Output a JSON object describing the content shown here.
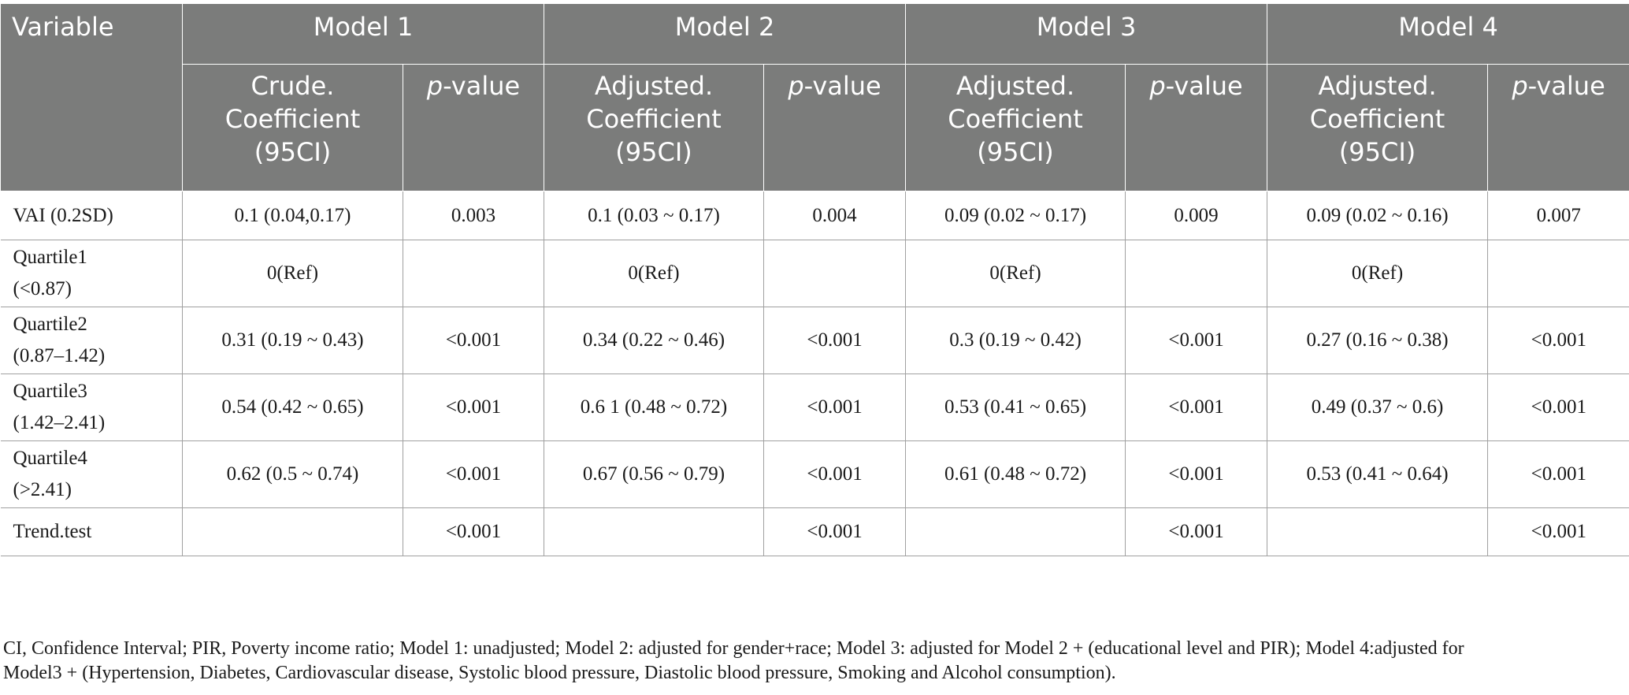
{
  "table": {
    "var_header": "Variable",
    "models": [
      "Model 1",
      "Model 2",
      "Model 3",
      "Model 4"
    ],
    "coef_headers": [
      [
        "Crude.",
        "Coefficient",
        "(95CI)"
      ],
      [
        "Adjusted.",
        "Coefficient",
        "(95CI)"
      ],
      [
        "Adjusted.",
        "Coefficient",
        "(95CI)"
      ],
      [
        "Adjusted.",
        "Coefficient",
        "(95CI)"
      ]
    ],
    "pval_prefix": "p",
    "pval_suffix": "-value",
    "rows": [
      {
        "label": [
          "VAI (0.2SD)"
        ],
        "cells": [
          "0.1 (0.04,0.17)",
          "0.003",
          "0.1 (0.03 ~ 0.17)",
          "0.004",
          "0.09 (0.02 ~ 0.17)",
          "0.009",
          "0.09 (0.02 ~ 0.16)",
          "0.007"
        ]
      },
      {
        "label": [
          "Quartile1",
          "(<0.87)"
        ],
        "cells": [
          "0(Ref)",
          "",
          "0(Ref)",
          "",
          "0(Ref)",
          "",
          "0(Ref)",
          ""
        ]
      },
      {
        "label": [
          "Quartile2",
          "(0.87–1.42)"
        ],
        "cells": [
          "0.31 (0.19 ~ 0.43)",
          "<0.001",
          "0.34 (0.22 ~ 0.46)",
          "<0.001",
          "0.3 (0.19 ~ 0.42)",
          "<0.001",
          "0.27 (0.16 ~ 0.38)",
          "<0.001"
        ]
      },
      {
        "label": [
          "Quartile3",
          "(1.42–2.41)"
        ],
        "cells": [
          "0.54 (0.42 ~ 0.65)",
          "<0.001",
          "0.6 1 (0.48 ~ 0.72)",
          "<0.001",
          "0.53 (0.41 ~ 0.65)",
          "<0.001",
          "0.49 (0.37 ~ 0.6)",
          "<0.001"
        ]
      },
      {
        "label": [
          "Quartile4",
          "(>2.41)"
        ],
        "cells": [
          "0.62 (0.5 ~ 0.74)",
          "<0.001",
          "0.67 (0.56 ~ 0.79)",
          "<0.001",
          "0.61 (0.48 ~ 0.72)",
          "<0.001",
          "0.53 (0.41 ~ 0.64)",
          "<0.001"
        ]
      },
      {
        "label": [
          "Trend.test"
        ],
        "cells": [
          "",
          "<0.001",
          "",
          "<0.001",
          "",
          "<0.001",
          "",
          "<0.001"
        ]
      }
    ]
  },
  "footnote": {
    "line1": "CI, Confidence Interval; PIR, Poverty income ratio; Model 1: unadjusted; Model 2: adjusted for gender+race; Model 3: adjusted for Model 2 + (educational level and PIR); Model 4:adjusted for",
    "line2": "Model3 + (Hypertension, Diabetes, Cardiovascular disease, Systolic blood pressure, Diastolic blood pressure, Smoking and Alcohol consumption)."
  },
  "colors": {
    "header_bg": "#7b7c7b",
    "header_text": "#ffffff",
    "grid": "#a0a0a0"
  }
}
